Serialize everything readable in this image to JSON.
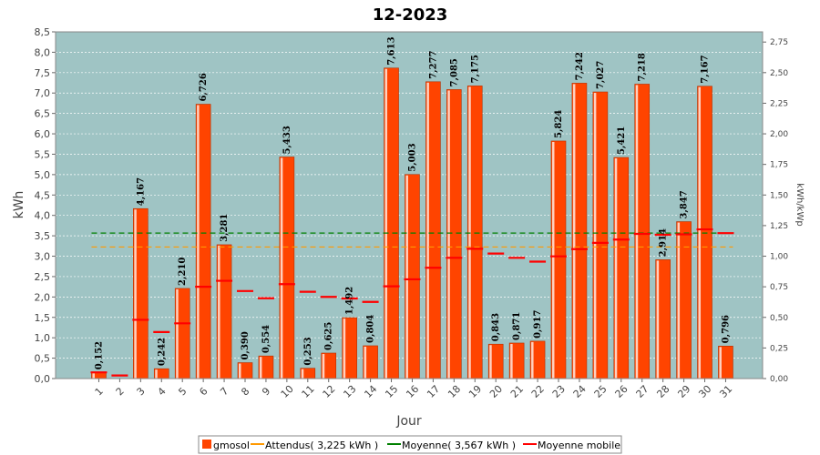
{
  "chart_data": {
    "type": "bar",
    "title": "12-2023",
    "xlabel": "Jour",
    "ylabel": "kWh",
    "ylabel_right": "kWh/kWp",
    "ylim": [
      0,
      8.5
    ],
    "ylim_right": [
      0,
      2.8333
    ],
    "y_ticks": [
      "0,0",
      "0,5",
      "1,0",
      "1,5",
      "2,0",
      "2,5",
      "3,0",
      "3,5",
      "4,0",
      "4,5",
      "5,0",
      "5,5",
      "6,0",
      "6,5",
      "7,0",
      "7,5",
      "8,0",
      "8,5"
    ],
    "y_ticks_right": [
      "0,00",
      "0,25",
      "0,50",
      "0,75",
      "1,00",
      "1,25",
      "1,50",
      "1,75",
      "2,00",
      "2,25",
      "2,50",
      "2,75"
    ],
    "categories": [
      "1",
      "2",
      "3",
      "4",
      "5",
      "6",
      "7",
      "8",
      "9",
      "10",
      "11",
      "12",
      "13",
      "14",
      "15",
      "16",
      "17",
      "18",
      "19",
      "20",
      "21",
      "22",
      "23",
      "24",
      "25",
      "26",
      "27",
      "28",
      "29",
      "30",
      "31"
    ],
    "series": [
      {
        "name": "gmosol",
        "type": "bar",
        "color": "#ff4400",
        "values": [
          0.152,
          0.0,
          4.167,
          0.242,
          2.21,
          6.726,
          3.281,
          0.39,
          0.554,
          5.433,
          0.253,
          0.625,
          1.492,
          0.804,
          7.613,
          5.003,
          7.277,
          7.085,
          7.175,
          0.843,
          0.871,
          0.917,
          5.824,
          7.242,
          7.027,
          5.421,
          7.218,
          2.914,
          3.847,
          7.167,
          0.796
        ],
        "labels": [
          "0,152",
          "",
          "4,167",
          "0,242",
          "2,210",
          "6,726",
          "3,281",
          "0,390",
          "0,554",
          "5,433",
          "0,253",
          "0,625",
          "1,492",
          "0,804",
          "7,613",
          "5,003",
          "7,277",
          "7,085",
          "7,175",
          "0,843",
          "0,871",
          "0,917",
          "5,824",
          "7,242",
          "7,027",
          "5,421",
          "7,218",
          "2,914",
          "3,847",
          "7,167",
          "0,796"
        ]
      },
      {
        "name": "Attendus( 3,225 kWh )",
        "type": "line",
        "color": "#ff9900",
        "value": 3.225
      },
      {
        "name": "Moyenne( 3,567 kWh )",
        "type": "line",
        "color": "#008000",
        "value": 3.567
      },
      {
        "name": "Moyenne mobile",
        "type": "step",
        "color": "#ff0000",
        "values": [
          0.152,
          0.076,
          1.44,
          1.14,
          1.354,
          2.25,
          2.397,
          2.146,
          1.969,
          2.315,
          2.127,
          2.002,
          1.963,
          1.88,
          2.262,
          2.433,
          2.717,
          2.96,
          3.182,
          3.065,
          2.96,
          2.867,
          2.996,
          3.173,
          3.327,
          3.408,
          3.548,
          3.525,
          3.536,
          3.657,
          3.565
        ]
      }
    ],
    "grid": true,
    "legend_position": "bottom",
    "plot_background": "#9fc4c4"
  }
}
